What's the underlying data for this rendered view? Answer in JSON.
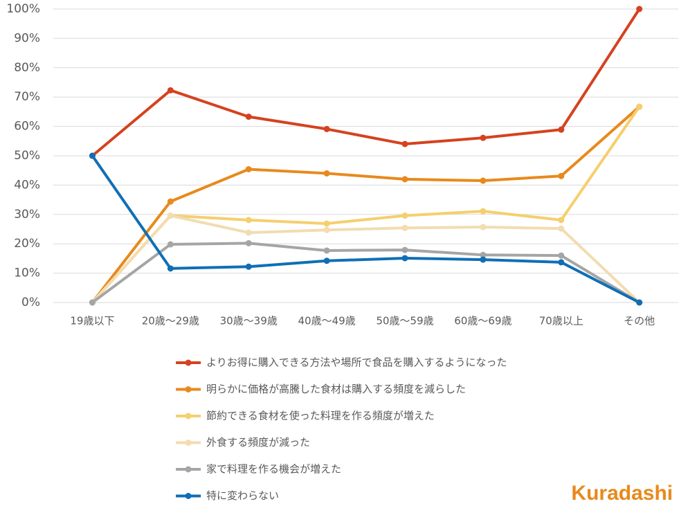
{
  "chart_data": {
    "type": "line",
    "categories": [
      "19歳以下",
      "20歳～29歳",
      "30歳～39歳",
      "40歳～49歳",
      "50歳～59歳",
      "60歳～69歳",
      "70歳以上",
      "その他"
    ],
    "series": [
      {
        "name": "よりお得に購入できる方法や場所で食品を購入するようになった",
        "color": "#d5421f",
        "values": [
          50,
          72.3,
          63.3,
          59.1,
          54,
          56.1,
          58.9,
          100
        ]
      },
      {
        "name": "明らかに価格が高騰した食材は購入する頻度を減らした",
        "color": "#e8891c",
        "values": [
          0,
          34.4,
          45.4,
          44,
          42,
          41.5,
          43.1,
          66.7
        ]
      },
      {
        "name": "節約できる食材を使った料理を作る頻度が増えた",
        "color": "#f5cf6e",
        "values": [
          0,
          29.6,
          28.1,
          26.9,
          29.6,
          31.1,
          28.1,
          66.7
        ]
      },
      {
        "name": "外食する頻度が減った",
        "color": "#f2dcb0",
        "values": [
          0,
          29.6,
          23.8,
          24.7,
          25.4,
          25.7,
          25.2,
          0
        ]
      },
      {
        "name": "家で料理を作る機会が増えた",
        "color": "#a5a5a5",
        "values": [
          0,
          19.8,
          20.2,
          17.7,
          17.9,
          16.2,
          16,
          0
        ]
      },
      {
        "name": "特に変わらない",
        "color": "#0f6fb5",
        "values": [
          50,
          11.6,
          12.2,
          14.2,
          15.1,
          14.6,
          13.7,
          0
        ]
      }
    ],
    "ylim": [
      0,
      100
    ],
    "yticks": [
      {
        "value": 0,
        "label": "0%"
      },
      {
        "value": 10,
        "label": "10%"
      },
      {
        "value": 20,
        "label": "20%"
      },
      {
        "value": 30,
        "label": "30%"
      },
      {
        "value": 40,
        "label": "40%"
      },
      {
        "value": 50,
        "label": "50%"
      },
      {
        "value": 60,
        "label": "60%"
      },
      {
        "value": 70,
        "label": "70%"
      },
      {
        "value": 80,
        "label": "80%"
      },
      {
        "value": 90,
        "label": "90%"
      },
      {
        "value": 100,
        "label": "100%"
      }
    ],
    "grid": true,
    "legend": "bottom"
  },
  "logo": "Kuradashi"
}
